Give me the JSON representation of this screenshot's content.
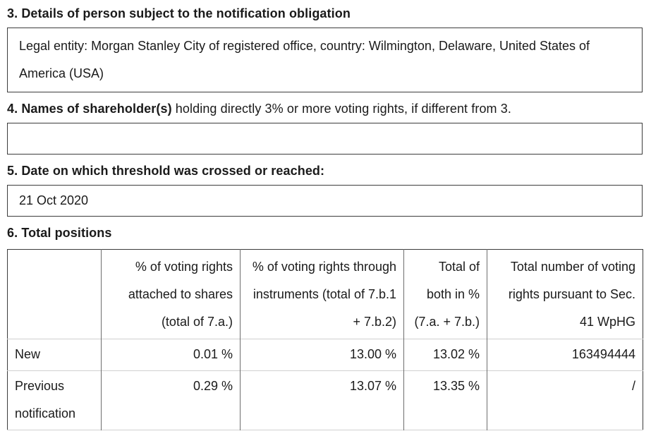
{
  "s3": {
    "heading": "3. Details of person subject to the notification obligation",
    "value": "Legal entity: Morgan Stanley City of registered office, country: Wilmington, Delaware, United States of America (USA)"
  },
  "s4": {
    "heading_bold": "4. Names of shareholder(s)",
    "heading_rest": " holding directly 3% or more voting rights, if different from 3.",
    "value": ""
  },
  "s5": {
    "heading": "5. Date on which threshold was crossed or reached:",
    "value": "21 Oct 2020"
  },
  "s6": {
    "heading": "6. Total positions",
    "table": {
      "headers": [
        "",
        "% of voting rights attached to shares (total of 7.a.)",
        "% of voting rights through instruments (total of 7.b.1 + 7.b.2)",
        "Total of both in % (7.a. + 7.b.)",
        "Total number of voting rights pursuant to Sec. 41 WpHG"
      ],
      "rows": [
        {
          "label": "New",
          "pct_voting_rights_shares": "0.01 %",
          "pct_voting_rights_instruments": "13.00 %",
          "pct_total_both": "13.02 %",
          "total_voting_rights": "163494444"
        },
        {
          "label": "Previous notification",
          "pct_voting_rights_shares": "0.29 %",
          "pct_voting_rights_instruments": "13.07 %",
          "pct_total_both": "13.35 %",
          "total_voting_rights": "/"
        }
      ]
    }
  },
  "colors": {
    "text": "#1a1a1a",
    "box_border": "#3c3c3c",
    "table_vertical_divider": "#6e6e6e",
    "table_horizontal_divider": "#d0d0d0",
    "background": "#ffffff"
  }
}
